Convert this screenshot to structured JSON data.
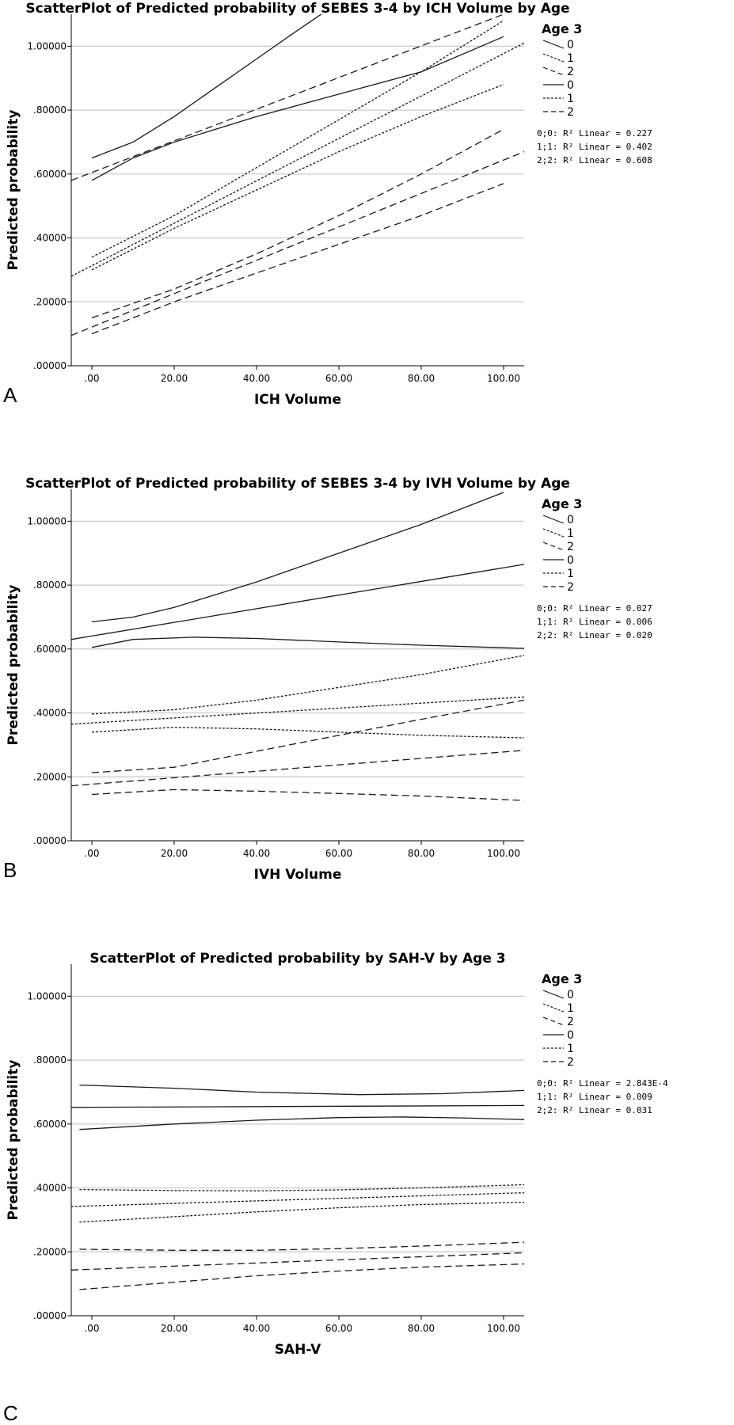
{
  "chart_data": [
    {
      "panel_label": "A",
      "type": "line",
      "title": "ScatterPlot of Predicted probability of SEBES 3-4 by ICH Volume by Age",
      "xlabel": "ICH Volume",
      "ylabel": "Predicted probability",
      "xlim": [
        -5,
        105
      ],
      "ylim": [
        0,
        1.1
      ],
      "xticks": [
        ".00",
        "20.00",
        "40.00",
        "60.00",
        "80.00",
        "100.00"
      ],
      "yticks": [
        ".00000",
        ".20000",
        ".40000",
        ".60000",
        ".80000",
        "1.00000"
      ],
      "grid": "horizontal",
      "legend_title": "Age 3",
      "legend_entries": [
        "0",
        "1",
        "2",
        "0",
        "1",
        "2"
      ],
      "r2_labels": [
        "0;0: R² Linear = 0.227",
        "1;1: R² Linear = 0.402",
        "2;2: R² Linear = 0.608"
      ],
      "series": [
        {
          "group": "0",
          "kind": "ci",
          "style": "solid",
          "x": [
            0,
            10,
            20,
            30,
            40,
            50,
            58
          ],
          "y": [
            0.65,
            0.7,
            0.78,
            0.87,
            0.96,
            1.05,
            1.12
          ]
        },
        {
          "group": "0",
          "kind": "fit",
          "style": "dashed",
          "x": [
            -5,
            100,
            105
          ],
          "y": [
            0.58,
            1.1,
            1.12
          ]
        },
        {
          "group": "0",
          "kind": "ci",
          "style": "solid",
          "x": [
            0,
            10,
            20,
            40,
            60,
            80,
            100
          ],
          "y": [
            0.58,
            0.65,
            0.7,
            0.78,
            0.85,
            0.92,
            1.03
          ]
        },
        {
          "group": "1",
          "kind": "ci",
          "style": "dotted",
          "x": [
            0,
            20,
            40,
            60,
            80,
            100
          ],
          "y": [
            0.34,
            0.47,
            0.62,
            0.77,
            0.92,
            1.08
          ]
        },
        {
          "group": "1",
          "kind": "fit",
          "style": "dotted",
          "x": [
            -5,
            105
          ],
          "y": [
            0.28,
            1.01
          ]
        },
        {
          "group": "1",
          "kind": "ci",
          "style": "dotted",
          "x": [
            0,
            20,
            40,
            60,
            80,
            100
          ],
          "y": [
            0.3,
            0.43,
            0.55,
            0.67,
            0.78,
            0.88
          ]
        },
        {
          "group": "2",
          "kind": "ci",
          "style": "dashed",
          "x": [
            0,
            20,
            40,
            60,
            80,
            100
          ],
          "y": [
            0.15,
            0.24,
            0.35,
            0.47,
            0.6,
            0.74
          ]
        },
        {
          "group": "2",
          "kind": "fit",
          "style": "dashed",
          "x": [
            -5,
            105
          ],
          "y": [
            0.095,
            0.67
          ]
        },
        {
          "group": "2",
          "kind": "ci",
          "style": "dashed",
          "x": [
            0,
            20,
            40,
            60,
            80,
            100
          ],
          "y": [
            0.1,
            0.2,
            0.29,
            0.38,
            0.47,
            0.57
          ]
        }
      ]
    },
    {
      "panel_label": "B",
      "type": "line",
      "title": "ScatterPlot of Predicted probability of SEBES 3-4 by IVH Volume by Age",
      "xlabel": "IVH Volume",
      "ylabel": "Predicted probability",
      "xlim": [
        -5,
        105
      ],
      "ylim": [
        0,
        1.1
      ],
      "xticks": [
        ".00",
        "20.00",
        "40.00",
        "60.00",
        "80.00",
        "100.00"
      ],
      "yticks": [
        ".00000",
        ".20000",
        ".40000",
        ".60000",
        ".80000",
        "1.00000"
      ],
      "grid": "horizontal",
      "legend_title": "Age 3",
      "legend_entries": [
        "0",
        "1",
        "2",
        "0",
        "1",
        "2"
      ],
      "r2_labels": [
        "0;0: R² Linear = 0.027",
        "1;1: R² Linear = 0.006",
        "2;2: R² Linear = 0.020"
      ],
      "series": [
        {
          "group": "0",
          "kind": "ci",
          "style": "solid",
          "x": [
            0,
            10,
            20,
            40,
            60,
            80,
            100
          ],
          "y": [
            0.685,
            0.7,
            0.73,
            0.81,
            0.9,
            0.99,
            1.09
          ]
        },
        {
          "group": "0",
          "kind": "fit",
          "style": "solid",
          "x": [
            -5,
            105
          ],
          "y": [
            0.63,
            0.865
          ]
        },
        {
          "group": "0",
          "kind": "ci",
          "style": "solid",
          "x": [
            0,
            10,
            25,
            40,
            60,
            80,
            105
          ],
          "y": [
            0.605,
            0.63,
            0.637,
            0.633,
            0.622,
            0.612,
            0.602
          ]
        },
        {
          "group": "1",
          "kind": "ci",
          "style": "dotted",
          "x": [
            0,
            20,
            40,
            60,
            80,
            105
          ],
          "y": [
            0.397,
            0.41,
            0.44,
            0.48,
            0.52,
            0.58
          ]
        },
        {
          "group": "1",
          "kind": "fit",
          "style": "dotted",
          "x": [
            -5,
            105
          ],
          "y": [
            0.365,
            0.45
          ]
        },
        {
          "group": "1",
          "kind": "ci",
          "style": "dotted",
          "x": [
            0,
            20,
            40,
            60,
            80,
            105
          ],
          "y": [
            0.34,
            0.355,
            0.35,
            0.34,
            0.33,
            0.322
          ]
        },
        {
          "group": "2",
          "kind": "ci",
          "style": "dashed",
          "x": [
            0,
            20,
            40,
            60,
            80,
            105
          ],
          "y": [
            0.213,
            0.23,
            0.28,
            0.33,
            0.38,
            0.44
          ]
        },
        {
          "group": "2",
          "kind": "fit",
          "style": "dashed",
          "x": [
            -5,
            105
          ],
          "y": [
            0.172,
            0.283
          ]
        },
        {
          "group": "2",
          "kind": "ci",
          "style": "dashed",
          "x": [
            0,
            20,
            40,
            60,
            80,
            105
          ],
          "y": [
            0.145,
            0.16,
            0.155,
            0.148,
            0.14,
            0.126
          ]
        }
      ]
    },
    {
      "panel_label": "C",
      "type": "line",
      "title": "ScatterPlot of Predicted probability by SAH-V by Age 3",
      "xlabel": "SAH-V",
      "ylabel": "Predicted probability",
      "xlim": [
        -5,
        105
      ],
      "ylim": [
        0,
        1.1
      ],
      "xticks": [
        ".00",
        "20.00",
        "40.00",
        "60.00",
        "80.00",
        "100.00"
      ],
      "yticks": [
        ".00000",
        ".20000",
        ".40000",
        ".60000",
        ".80000",
        "1.00000"
      ],
      "grid": "horizontal",
      "legend_title": "Age 3",
      "legend_entries": [
        "0",
        "1",
        "2",
        "0",
        "1",
        "2"
      ],
      "r2_labels": [
        "0;0: R² Linear = 2.843E-4",
        "1;1: R² Linear = 0.009",
        "2;2: R² Linear = 0.031"
      ],
      "series": [
        {
          "group": "0",
          "kind": "ci",
          "style": "solid",
          "x": [
            -3,
            20,
            40,
            65,
            85,
            105
          ],
          "y": [
            0.722,
            0.712,
            0.7,
            0.692,
            0.695,
            0.705
          ]
        },
        {
          "group": "0",
          "kind": "fit",
          "style": "solid",
          "x": [
            -5,
            105
          ],
          "y": [
            0.652,
            0.658
          ]
        },
        {
          "group": "0",
          "kind": "ci",
          "style": "solid",
          "x": [
            -3,
            20,
            40,
            60,
            75,
            90,
            105
          ],
          "y": [
            0.583,
            0.6,
            0.612,
            0.62,
            0.622,
            0.619,
            0.614
          ]
        },
        {
          "group": "1",
          "kind": "ci",
          "style": "dotted",
          "x": [
            -3,
            20,
            40,
            60,
            80,
            105
          ],
          "y": [
            0.395,
            0.392,
            0.391,
            0.394,
            0.4,
            0.41
          ]
        },
        {
          "group": "1",
          "kind": "fit",
          "style": "dotted",
          "x": [
            -5,
            105
          ],
          "y": [
            0.342,
            0.385
          ]
        },
        {
          "group": "1",
          "kind": "ci",
          "style": "dotted",
          "x": [
            -3,
            20,
            40,
            60,
            80,
            105
          ],
          "y": [
            0.293,
            0.31,
            0.325,
            0.338,
            0.348,
            0.355
          ]
        },
        {
          "group": "2",
          "kind": "ci",
          "style": "dashed",
          "x": [
            -3,
            20,
            40,
            60,
            80,
            105
          ],
          "y": [
            0.208,
            0.205,
            0.205,
            0.21,
            0.218,
            0.23
          ]
        },
        {
          "group": "2",
          "kind": "fit",
          "style": "dashed",
          "x": [
            -5,
            105
          ],
          "y": [
            0.143,
            0.197
          ]
        },
        {
          "group": "2",
          "kind": "ci",
          "style": "dashed",
          "x": [
            -3,
            20,
            40,
            60,
            80,
            105
          ],
          "y": [
            0.082,
            0.105,
            0.125,
            0.14,
            0.152,
            0.162
          ]
        }
      ]
    }
  ]
}
